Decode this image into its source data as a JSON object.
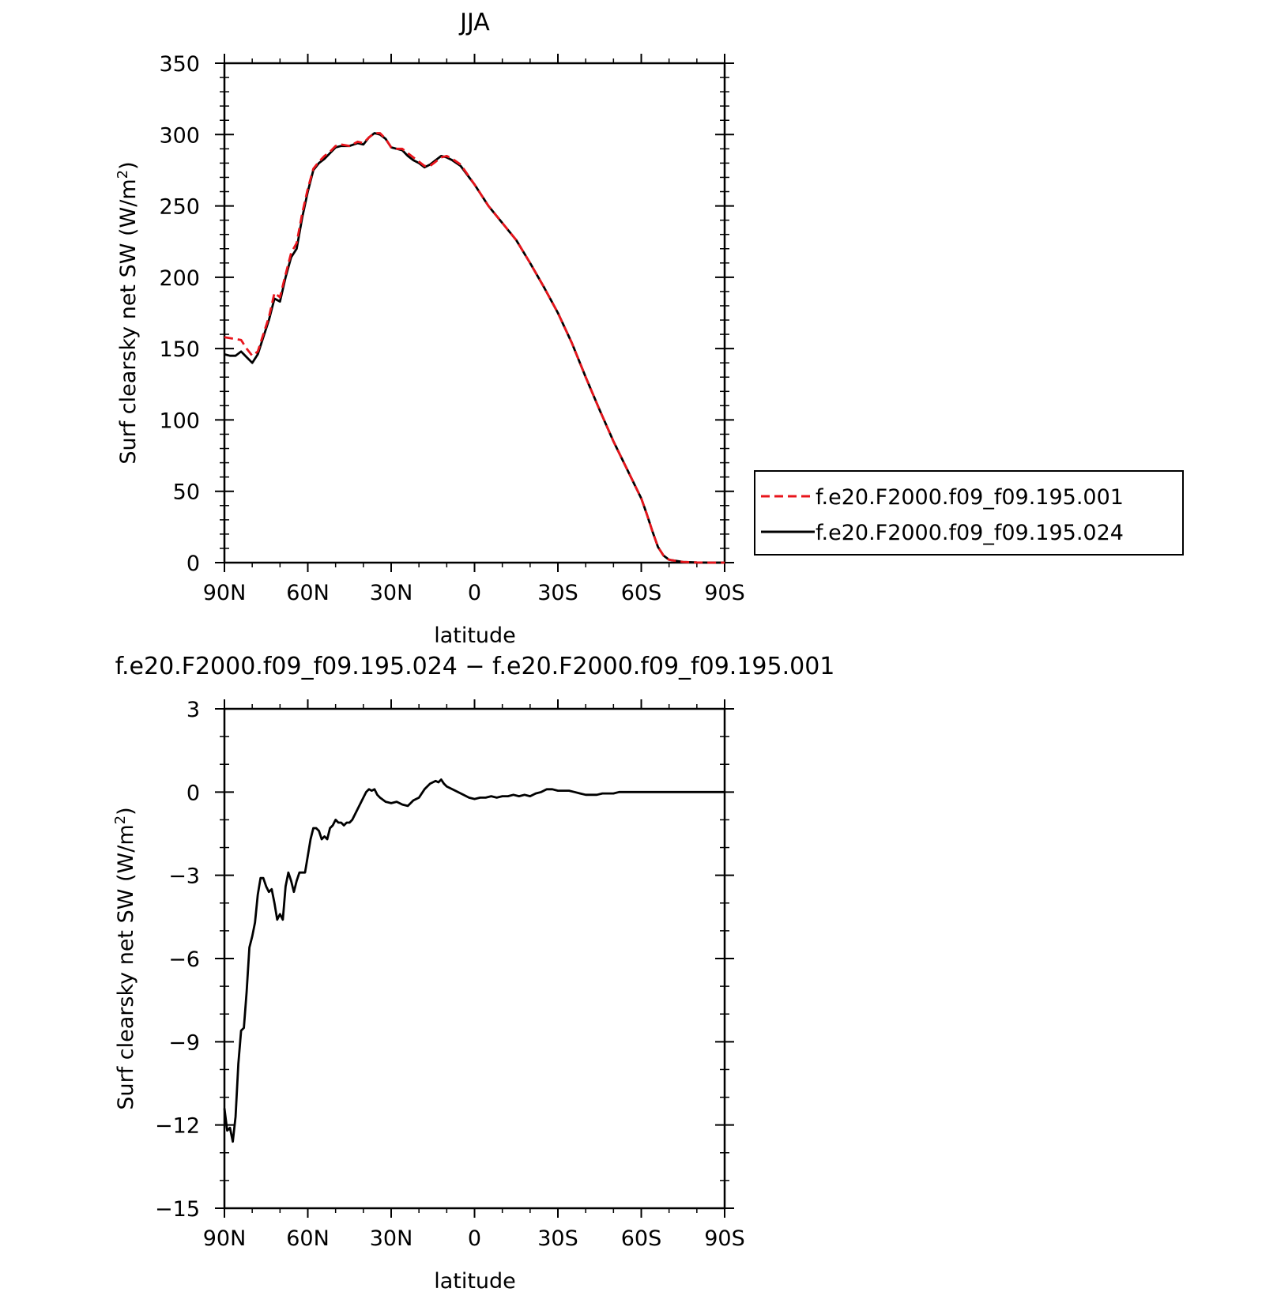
{
  "chart_data": [
    {
      "type": "line",
      "title": "JJA",
      "xlabel": "latitude",
      "ylabel": "Surf clearsky net SW (W/m²)",
      "xticks": [
        "90N",
        "60N",
        "30N",
        "0",
        "30S",
        "60S",
        "90S"
      ],
      "xlim": [
        90,
        -90
      ],
      "ylim": [
        0,
        350
      ],
      "yticks": [
        "0",
        "50",
        "100",
        "150",
        "200",
        "250",
        "300",
        "350"
      ],
      "grid": false,
      "legend_position": "right",
      "legend": [
        "f.e20.F2000.f09_f09.195.001",
        "f.e20.F2000.f09_f09.195.024"
      ],
      "series": [
        {
          "name": "f.e20.F2000.f09_f09.195.001",
          "color": "#e8141b",
          "dash": "dashed",
          "x": [
            90,
            87,
            84,
            82,
            80,
            78,
            76,
            74,
            72,
            70,
            68,
            66,
            64,
            62,
            60,
            58,
            56,
            54,
            52,
            50,
            48,
            45,
            42,
            40,
            38,
            36,
            34,
            32,
            30,
            28,
            26,
            24,
            22,
            20,
            18,
            16,
            14,
            12,
            10,
            8,
            5,
            0,
            -5,
            -10,
            -15,
            -20,
            -25,
            -30,
            -35,
            -40,
            -45,
            -50,
            -55,
            -60,
            -62,
            -64,
            -66,
            -68,
            -70,
            -75,
            -80,
            -85,
            -90
          ],
          "y": [
            158,
            157,
            156,
            150,
            145,
            148,
            160,
            172,
            189,
            186,
            202,
            217,
            224,
            245,
            262,
            276,
            281,
            285,
            288,
            292,
            293,
            292,
            295,
            294,
            298,
            301,
            301,
            297,
            291,
            290,
            290,
            287,
            284,
            281,
            278,
            278,
            281,
            284,
            285,
            283,
            279,
            265,
            250,
            238,
            226,
            210,
            193,
            175,
            154,
            130,
            107,
            85,
            65,
            45,
            34,
            22,
            11,
            5,
            2,
            0.5,
            0.1,
            0,
            0
          ]
        },
        {
          "name": "f.e20.F2000.f09_f09.195.024",
          "color": "#000000",
          "dash": "solid",
          "x": [
            90,
            88,
            86,
            84,
            82,
            80,
            78,
            76,
            74,
            72,
            70,
            68,
            66,
            64,
            62,
            60,
            58,
            56,
            54,
            52,
            50,
            48,
            45,
            42,
            40,
            38,
            36,
            34,
            32,
            30,
            28,
            26,
            24,
            22,
            20,
            18,
            16,
            14,
            12,
            10,
            8,
            5,
            0,
            -5,
            -10,
            -15,
            -20,
            -25,
            -30,
            -35,
            -40,
            -45,
            -50,
            -55,
            -60,
            -62,
            -64,
            -66,
            -68,
            -70,
            -75,
            -80,
            -85,
            -90
          ],
          "y": [
            146,
            145,
            145,
            148,
            144,
            140,
            146,
            158,
            170,
            185,
            183,
            200,
            214,
            220,
            242,
            260,
            275,
            280,
            283,
            287,
            291,
            292,
            292,
            294,
            293,
            298,
            301,
            300,
            297,
            291,
            290,
            289,
            285,
            282,
            280,
            277,
            279,
            282,
            285,
            284,
            282,
            278,
            265,
            250,
            238,
            226,
            210,
            193,
            175,
            154,
            130,
            107,
            85,
            65,
            45,
            34,
            22,
            11,
            5,
            2,
            0.5,
            0.1,
            0,
            0
          ]
        }
      ]
    },
    {
      "type": "line",
      "title": "f.e20.F2000.f09_f09.195.024 − f.e20.F2000.f09_f09.195.001",
      "xlabel": "latitude",
      "ylabel": "Surf clearsky net SW (W/m²)",
      "xticks": [
        "90N",
        "60N",
        "30N",
        "0",
        "30S",
        "60S",
        "90S"
      ],
      "xlim": [
        90,
        -90
      ],
      "ylim": [
        -15,
        3
      ],
      "yticks": [
        "−15",
        "−12",
        "−9",
        "−6",
        "−3",
        "0",
        "3"
      ],
      "grid": false,
      "series": [
        {
          "color": "#000000",
          "dash": "solid",
          "x": [
            90,
            89,
            88,
            87,
            86,
            85,
            84,
            83,
            82,
            81,
            80,
            79,
            78,
            77,
            76,
            75,
            74,
            73,
            72,
            71,
            70,
            69,
            68,
            67,
            66,
            65,
            64,
            63,
            62,
            61,
            60,
            59,
            58,
            57,
            56,
            55,
            54,
            53,
            52,
            51,
            50,
            49,
            48,
            47,
            46,
            45,
            44,
            43,
            42,
            41,
            40,
            39,
            38,
            37,
            36,
            35,
            34,
            32,
            30,
            28,
            26,
            24,
            22,
            20,
            18,
            16,
            14,
            13,
            12,
            11,
            10,
            8,
            6,
            4,
            2,
            0,
            -2,
            -4,
            -6,
            -8,
            -10,
            -12,
            -14,
            -16,
            -18,
            -20,
            -22,
            -24,
            -26,
            -28,
            -30,
            -32,
            -34,
            -36,
            -38,
            -40,
            -42,
            -44,
            -46,
            -48,
            -50,
            -52,
            -54,
            -56,
            -58,
            -60,
            -65,
            -70,
            -75,
            -80,
            -85,
            -90
          ],
          "y": [
            -11.4,
            -12.2,
            -12.1,
            -12.6,
            -11.7,
            -9.8,
            -8.6,
            -8.5,
            -7.2,
            -5.6,
            -5.2,
            -4.7,
            -3.7,
            -3.1,
            -3.1,
            -3.4,
            -3.6,
            -3.5,
            -4.0,
            -4.6,
            -4.4,
            -4.6,
            -3.4,
            -2.9,
            -3.2,
            -3.6,
            -3.2,
            -2.9,
            -2.9,
            -2.9,
            -2.3,
            -1.7,
            -1.3,
            -1.3,
            -1.4,
            -1.7,
            -1.6,
            -1.7,
            -1.3,
            -1.2,
            -1.0,
            -1.1,
            -1.1,
            -1.2,
            -1.1,
            -1.1,
            -1.0,
            -0.8,
            -0.6,
            -0.4,
            -0.2,
            0.0,
            0.1,
            0.05,
            0.1,
            -0.1,
            -0.2,
            -0.35,
            -0.4,
            -0.35,
            -0.45,
            -0.5,
            -0.3,
            -0.2,
            0.1,
            0.3,
            0.4,
            0.35,
            0.45,
            0.3,
            0.2,
            0.1,
            0.0,
            -0.1,
            -0.2,
            -0.25,
            -0.2,
            -0.2,
            -0.15,
            -0.2,
            -0.15,
            -0.15,
            -0.1,
            -0.15,
            -0.1,
            -0.15,
            -0.05,
            0.0,
            0.1,
            0.1,
            0.05,
            0.05,
            0.05,
            0.0,
            -0.05,
            -0.1,
            -0.1,
            -0.1,
            -0.05,
            -0.05,
            -0.05,
            0.0,
            0.0,
            0.0,
            0.0,
            0.0,
            0.0,
            0.0,
            0.0,
            0.0,
            0.0,
            0.0
          ]
        }
      ]
    }
  ]
}
